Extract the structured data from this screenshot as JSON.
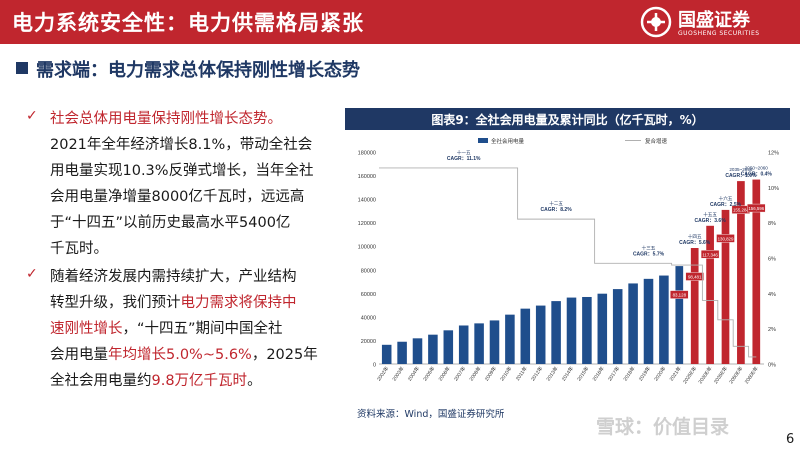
{
  "header": {
    "title": "电力系统安全性：电力供需格局紧张",
    "logo_name": "国盛证券",
    "logo_subtitle": "GUOSHENG SECURITIES"
  },
  "section": {
    "title": "需求端：电力需求总体保持刚性增长态势"
  },
  "bullets": [
    {
      "lines": [
        {
          "segments": [
            {
              "text": "社会总体用电量保持刚性增长态势。",
              "color": "red"
            }
          ]
        },
        {
          "segments": [
            {
              "text": "2021年全年经济增长8.1%，带动全社会",
              "color": "normal"
            }
          ]
        },
        {
          "segments": [
            {
              "text": "用电量实现10.3%反弹式增长，当年全社",
              "color": "normal"
            }
          ]
        },
        {
          "segments": [
            {
              "text": "会用电量净增量8000亿千瓦时，远远高",
              "color": "normal"
            }
          ]
        },
        {
          "segments": [
            {
              "text": "于“十四五”以前历史最高水平5400亿",
              "color": "normal"
            }
          ]
        },
        {
          "segments": [
            {
              "text": "千瓦时。",
              "color": "normal"
            }
          ]
        }
      ]
    },
    {
      "lines": [
        {
          "segments": [
            {
              "text": "随着经济发展内需持续扩大，产业结构",
              "color": "normal"
            }
          ]
        },
        {
          "segments": [
            {
              "text": "转型升级，我们预计",
              "color": "normal"
            },
            {
              "text": "电力需求将保持中",
              "color": "red"
            }
          ]
        },
        {
          "segments": [
            {
              "text": "速刚性增长",
              "color": "red"
            },
            {
              "text": "，“十四五”期间中国全社",
              "color": "normal"
            }
          ]
        },
        {
          "segments": [
            {
              "text": "会用电量",
              "color": "normal"
            },
            {
              "text": "年均增长5.0%~5.6%",
              "color": "red"
            },
            {
              "text": "，2025年",
              "color": "normal"
            }
          ]
        },
        {
          "segments": [
            {
              "text": "全社会用电量约",
              "color": "normal"
            },
            {
              "text": "9.8万亿千瓦时",
              "color": "red"
            },
            {
              "text": "。",
              "color": "normal"
            }
          ]
        }
      ]
    }
  ],
  "chart_title": "图表9：全社会用电量及累计同比（亿千瓦时，%）",
  "source": "资料来源：Wind，国盛证券研究所",
  "watermark": "雪球：价值目录",
  "page_number": "6",
  "colors": {
    "brand_red": "#c0262e",
    "navy": "#1f3864",
    "bar_blue": "#1f4e8c"
  },
  "chart_data": {
    "type": "bar",
    "categories": [
      "2002年",
      "2003年",
      "2004年",
      "2005年",
      "2006年",
      "2007年",
      "2008年",
      "2009年",
      "2010年",
      "2011年",
      "2012年",
      "2013年",
      "2014年",
      "2015年",
      "2016年",
      "2017年",
      "2018年",
      "2019年",
      "2020年",
      "2021年",
      "2025E年",
      "2030E年",
      "2035E年",
      "2050E年",
      "2060E年"
    ],
    "series": [
      {
        "name": "全社会用电量",
        "kind": "bar",
        "values": [
          16300,
          18900,
          21800,
          24900,
          28600,
          32700,
          34500,
          37000,
          41900,
          47000,
          49600,
          53400,
          56400,
          56900,
          59700,
          63600,
          68400,
          72300,
          75100,
          83128,
          98481,
          117346,
          130829,
          155284,
          156596
        ]
      },
      {
        "name": "复合增速",
        "kind": "line",
        "values": [
          11.1,
          11.1,
          11.1,
          11.1,
          11.1,
          11.1,
          11.1,
          11.1,
          11.1,
          8.2,
          8.2,
          8.2,
          8.2,
          8.2,
          5.7,
          5.7,
          5.7,
          5.7,
          5.7,
          5.6,
          5.6,
          3.6,
          2.5,
          1.0,
          0.4
        ]
      }
    ],
    "annotations": [
      {
        "period": "十一五",
        "text": "CAGR：11.1%"
      },
      {
        "period": "十二五",
        "text": "CAGR：8.2%"
      },
      {
        "period": "十三五",
        "text": "CAGR：5.7%"
      },
      {
        "period": "十四五",
        "text": "CAGR：5.6%"
      },
      {
        "period": "十五五",
        "text": "CAGR：3.6%"
      },
      {
        "period": "十六五",
        "text": "CAGR：2.5%"
      },
      {
        "period": "2035~2050",
        "text": "CAGR：1.0%"
      },
      {
        "period": "2050~2060",
        "text": "CAGR：0.4%"
      }
    ],
    "bar_value_labels": [
      "83,128",
      "98,481",
      "117,346",
      "130,829",
      "155,284",
      "156,596"
    ],
    "highlight_from_index": 19,
    "ylim_left": [
      0,
      180000
    ],
    "left_ticks": [
      0,
      20000,
      40000,
      60000,
      80000,
      100000,
      120000,
      140000,
      160000,
      180000
    ],
    "ylim_right": [
      0,
      12
    ],
    "right_ticks": [
      "0%",
      "2%",
      "4%",
      "6%",
      "8%",
      "10%",
      "12%"
    ],
    "legend_position": "top"
  }
}
